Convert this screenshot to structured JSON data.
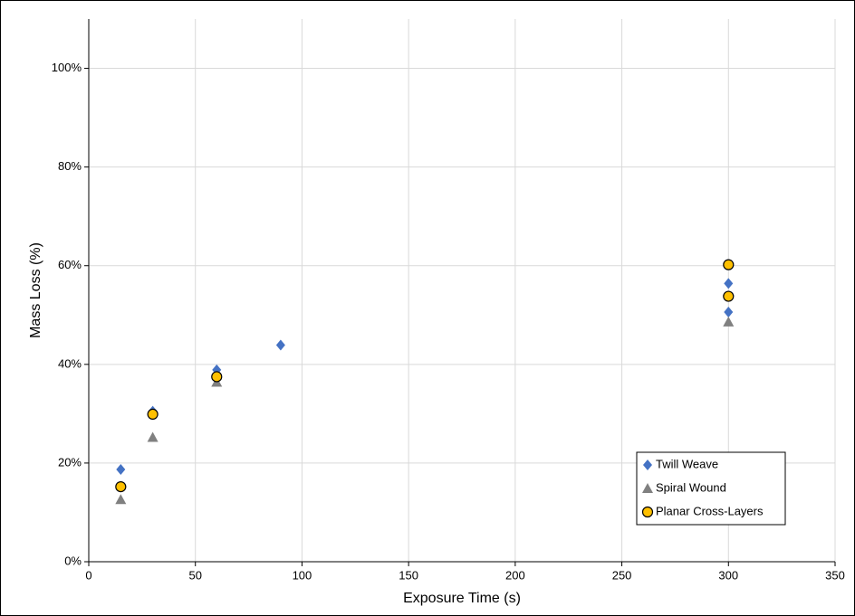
{
  "chart_data": {
    "type": "scatter",
    "xlabel": "Exposure Time (s)",
    "ylabel": "Mass Loss (%)",
    "xlim": [
      0,
      350
    ],
    "xticks": [
      0,
      50,
      100,
      150,
      200,
      250,
      300,
      350
    ],
    "ylim": [
      0,
      110
    ],
    "yticks": [
      {
        "value": 0,
        "label": "0%"
      },
      {
        "value": 20,
        "label": "20%"
      },
      {
        "value": 40,
        "label": "40%"
      },
      {
        "value": 60,
        "label": "60%"
      },
      {
        "value": 80,
        "label": "80%"
      },
      {
        "value": 100,
        "label": "100%"
      }
    ],
    "grid": true,
    "legend": "lower right",
    "series": [
      {
        "name": "Twill Weave",
        "color": "#4472c4",
        "marker": "diamond",
        "x": [
          15,
          30,
          60,
          90,
          300,
          300
        ],
        "values": [
          18.7,
          30.5,
          38.9,
          43.9,
          56.4,
          50.6
        ]
      },
      {
        "name": "Spiral Wound",
        "color": "#808080",
        "marker": "triangle",
        "x": [
          15,
          30,
          60,
          300
        ],
        "values": [
          12.6,
          25.2,
          36.4,
          48.6
        ]
      },
      {
        "name": "Planar Cross-Layers",
        "color": "#ffc000",
        "marker": "circle",
        "x": [
          15,
          30,
          60,
          300,
          300
        ],
        "values": [
          15.2,
          29.9,
          37.5,
          60.2,
          53.8
        ]
      }
    ]
  }
}
